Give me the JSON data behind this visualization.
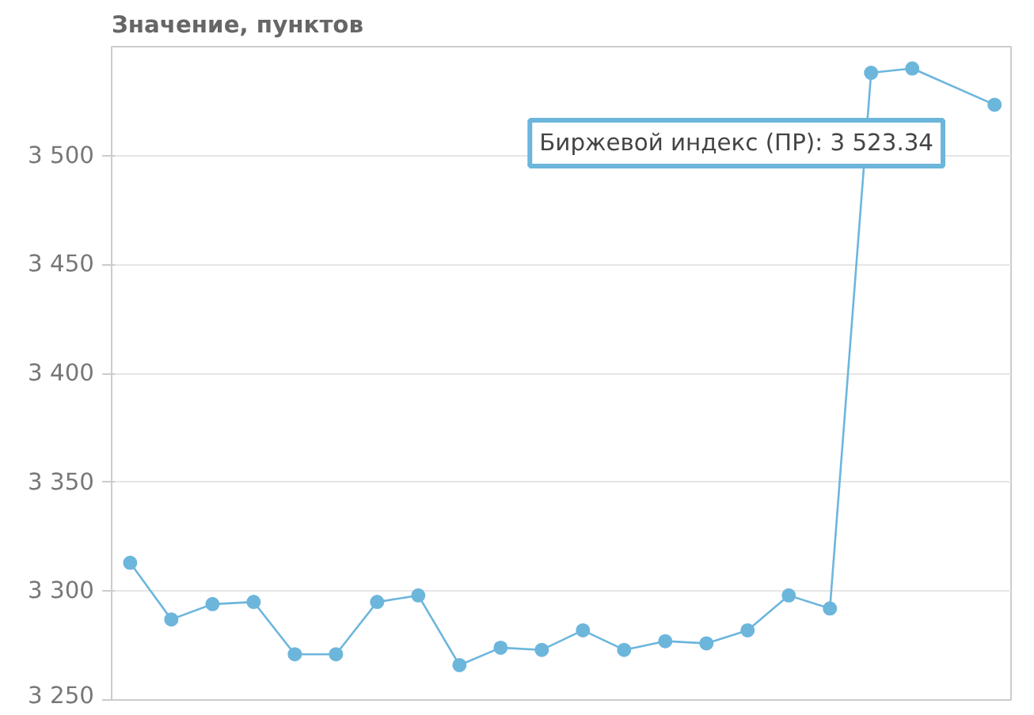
{
  "chart_data": {
    "type": "line",
    "ylabel": "Значение, пунктов",
    "categories": [
      null,
      null,
      null,
      null,
      null,
      null,
      null,
      null,
      null,
      null,
      null,
      null,
      null,
      null,
      null,
      null,
      null,
      null,
      null,
      null,
      null,
      null
    ],
    "series": [
      {
        "color": "#6cb6dc",
        "values": [
          3313,
          3287,
          3294,
          3295,
          3271,
          3271,
          3295,
          3298,
          3266,
          3274,
          3273,
          3282,
          3273,
          3277,
          3276,
          3282,
          3298,
          3292,
          3538,
          3540,
          null,
          3523.34
        ]
      }
    ],
    "ylim": [
      3250,
      3550
    ],
    "yticks": [
      {
        "value": 3250,
        "label": "3 250"
      },
      {
        "value": 3300,
        "label": "3 300"
      },
      {
        "value": 3350,
        "label": "3 350"
      },
      {
        "value": 3400,
        "label": "3 400"
      },
      {
        "value": 3450,
        "label": "3 450"
      },
      {
        "value": 3500,
        "label": "3 500"
      }
    ],
    "grid": "y",
    "marker": "circle",
    "line_style": "solid",
    "annotations": [
      "Биржевой индекс (ПР): 3 523.34"
    ]
  }
}
